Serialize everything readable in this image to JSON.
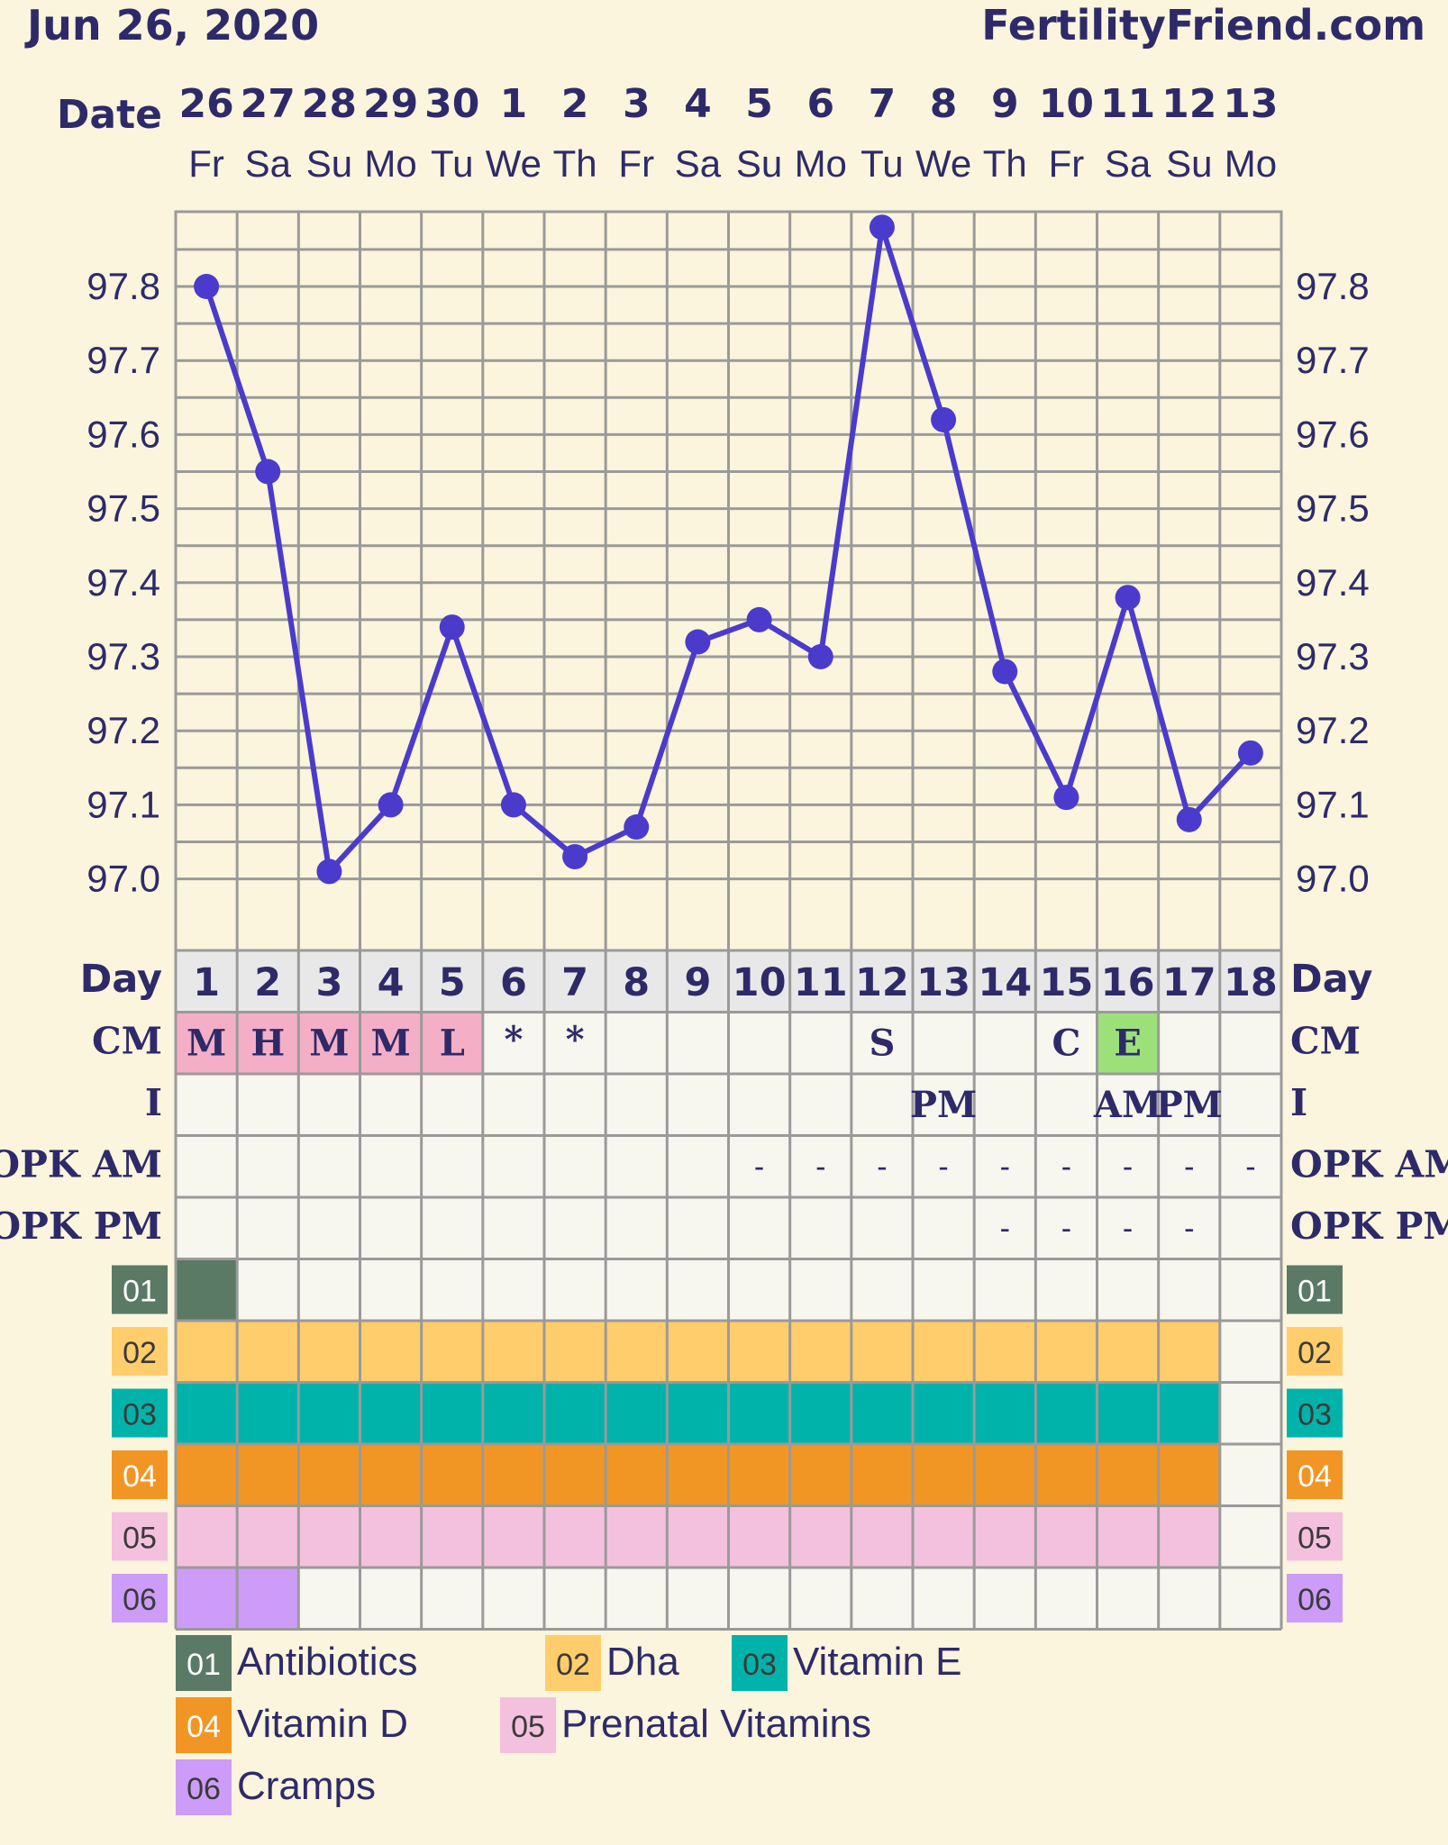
{
  "header": {
    "date": "Jun 26, 2020",
    "site": "FertilityFriend.com"
  },
  "row_labels": {
    "date": "Date",
    "day": "Day",
    "cm": "CM",
    "i": "I",
    "opk_am": "OPK AM",
    "opk_pm": "OPK PM"
  },
  "chart_data": {
    "type": "line",
    "x": [
      "26",
      "27",
      "28",
      "29",
      "30",
      "1",
      "2",
      "3",
      "4",
      "5",
      "6",
      "7",
      "8",
      "9",
      "10",
      "11",
      "12",
      "13"
    ],
    "weekdays": [
      "Fr",
      "Sa",
      "Su",
      "Mo",
      "Tu",
      "We",
      "Th",
      "Fr",
      "Sa",
      "Su",
      "Mo",
      "Tu",
      "We",
      "Th",
      "Fr",
      "Sa",
      "Su",
      "Mo"
    ],
    "y_ticks": [
      "97.0",
      "97.1",
      "97.2",
      "97.3",
      "97.4",
      "97.5",
      "97.6",
      "97.7",
      "97.8"
    ],
    "ylim": [
      96.98,
      97.9
    ],
    "grid": true,
    "series": [
      {
        "values": [
          97.8,
          97.55,
          97.01,
          97.1,
          97.34,
          97.1,
          97.03,
          97.07,
          97.32,
          97.35,
          97.3,
          97.88,
          97.62,
          97.28,
          97.11,
          97.38,
          97.08,
          97.17
        ]
      }
    ]
  },
  "cycle_days": [
    "1",
    "2",
    "3",
    "4",
    "5",
    "6",
    "7",
    "8",
    "9",
    "10",
    "11",
    "12",
    "13",
    "14",
    "15",
    "16",
    "17",
    "18"
  ],
  "cm": [
    "M",
    "H",
    "M",
    "M",
    "L",
    "*",
    "*",
    "",
    "",
    "",
    "",
    "S",
    "",
    "",
    "C",
    "E",
    "",
    ""
  ],
  "cm_colors": [
    "#f4afc6",
    "#f4afc6",
    "#f4afc6",
    "#f4afc6",
    "#f4afc6",
    "",
    "",
    "",
    "",
    "",
    "",
    "",
    "",
    "",
    "",
    "#9ce07a",
    "",
    ""
  ],
  "intercourse": [
    "",
    "",
    "",
    "",
    "",
    "",
    "",
    "",
    "",
    "",
    "",
    "",
    "PM",
    "",
    "",
    "AM",
    "PM",
    ""
  ],
  "opk_am": [
    "",
    "",
    "",
    "",
    "",
    "",
    "",
    "",
    "",
    "-",
    "-",
    "-",
    "-",
    "-",
    "-",
    "-",
    "-",
    "-"
  ],
  "opk_pm": [
    "",
    "",
    "",
    "",
    "",
    "",
    "",
    "",
    "",
    "",
    "",
    "",
    "",
    "-",
    "-",
    "-",
    "-",
    ""
  ],
  "custom_rows": [
    {
      "code": "01",
      "color": "#5a7a65",
      "text_color": "#ffffff",
      "active": [
        1
      ]
    },
    {
      "code": "02",
      "color": "#ffcd6b",
      "text_color": "#3a3a3a",
      "active": [
        1,
        2,
        3,
        4,
        5,
        6,
        7,
        8,
        9,
        10,
        11,
        12,
        13,
        14,
        15,
        16,
        17
      ]
    },
    {
      "code": "03",
      "color": "#00b3aa",
      "text_color": "#3a3a3a",
      "active": [
        1,
        2,
        3,
        4,
        5,
        6,
        7,
        8,
        9,
        10,
        11,
        12,
        13,
        14,
        15,
        16,
        17
      ]
    },
    {
      "code": "04",
      "color": "#f19624",
      "text_color": "#ffffff",
      "active": [
        1,
        2,
        3,
        4,
        5,
        6,
        7,
        8,
        9,
        10,
        11,
        12,
        13,
        14,
        15,
        16,
        17
      ]
    },
    {
      "code": "05",
      "color": "#f3c1de",
      "text_color": "#3a3a3a",
      "active": [
        1,
        2,
        3,
        4,
        5,
        6,
        7,
        8,
        9,
        10,
        11,
        12,
        13,
        14,
        15,
        16,
        17
      ]
    },
    {
      "code": "06",
      "color": "#cc9cf8",
      "text_color": "#3a3a3a",
      "active": [
        1,
        2
      ]
    }
  ],
  "legend": [
    {
      "code": "01",
      "label": "Antibiotics"
    },
    {
      "code": "02",
      "label": "Dha"
    },
    {
      "code": "03",
      "label": "Vitamin E"
    },
    {
      "code": "04",
      "label": "Vitamin D"
    },
    {
      "code": "05",
      "label": "Prenatal Vitamins"
    },
    {
      "code": "06",
      "label": "Cramps"
    }
  ],
  "colors": {
    "line": "#4b3bcc",
    "text": "#2e2a6a",
    "grid": "#9a9a9a",
    "background": "#faf5dc",
    "cell": "#f7f6ef",
    "day_row": "#e9e8e8"
  }
}
